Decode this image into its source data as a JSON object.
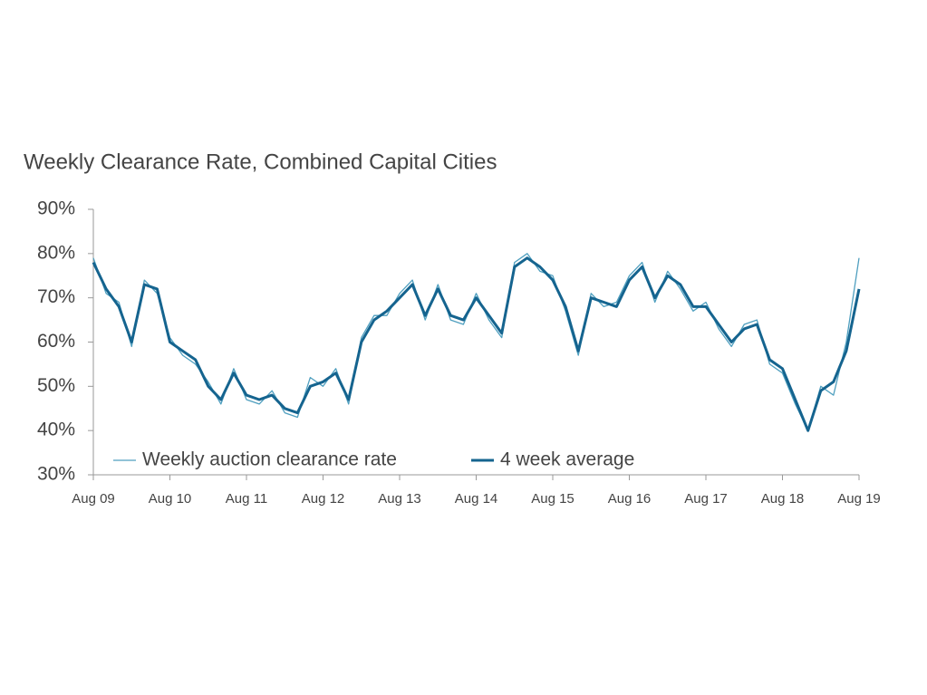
{
  "chart_data": {
    "type": "line",
    "title": "Weekly Clearance Rate, Combined Capital Cities",
    "x": [
      "2009-08",
      "2009-10",
      "2009-12",
      "2010-02",
      "2010-04",
      "2010-06",
      "2010-08",
      "2010-10",
      "2010-12",
      "2011-02",
      "2011-04",
      "2011-06",
      "2011-08",
      "2011-10",
      "2011-12",
      "2012-02",
      "2012-04",
      "2012-06",
      "2012-08",
      "2012-10",
      "2012-12",
      "2013-02",
      "2013-04",
      "2013-06",
      "2013-08",
      "2013-10",
      "2013-12",
      "2014-02",
      "2014-04",
      "2014-06",
      "2014-08",
      "2014-10",
      "2014-12",
      "2015-02",
      "2015-04",
      "2015-06",
      "2015-08",
      "2015-10",
      "2015-12",
      "2016-02",
      "2016-04",
      "2016-06",
      "2016-08",
      "2016-10",
      "2016-12",
      "2017-02",
      "2017-04",
      "2017-06",
      "2017-08",
      "2017-10",
      "2017-12",
      "2018-02",
      "2018-04",
      "2018-06",
      "2018-08",
      "2018-10",
      "2018-12",
      "2019-02",
      "2019-04",
      "2019-06",
      "2019-08"
    ],
    "series": [
      {
        "name": "Weekly auction clearance rate",
        "color": "#4f9fbf",
        "values": [
          79,
          71,
          69,
          59,
          74,
          71,
          61,
          57,
          55,
          51,
          46,
          54,
          47,
          46,
          49,
          44,
          43,
          52,
          50,
          54,
          46,
          61,
          66,
          66,
          71,
          74,
          65,
          73,
          65,
          64,
          71,
          65,
          61,
          78,
          80,
          76,
          75,
          67,
          57,
          71,
          68,
          69,
          75,
          78,
          69,
          76,
          72,
          67,
          69,
          63,
          59,
          64,
          65,
          55,
          53,
          46,
          40,
          50,
          48,
          60,
          79
        ]
      },
      {
        "name": "4 week average",
        "color": "#15648f",
        "values": [
          78,
          72,
          68,
          60,
          73,
          72,
          60,
          58,
          56,
          50,
          47,
          53,
          48,
          47,
          48,
          45,
          44,
          50,
          51,
          53,
          47,
          60,
          65,
          67,
          70,
          73,
          66,
          72,
          66,
          65,
          70,
          66,
          62,
          77,
          79,
          77,
          74,
          68,
          58,
          70,
          69,
          68,
          74,
          77,
          70,
          75,
          73,
          68,
          68,
          64,
          60,
          63,
          64,
          56,
          54,
          47,
          40,
          49,
          51,
          58,
          72
        ]
      }
    ],
    "xlim": [
      "2009-08",
      "2019-08"
    ],
    "xticks": [
      {
        "value": "2009-08",
        "label": "Aug 09"
      },
      {
        "value": "2010-08",
        "label": "Aug 10"
      },
      {
        "value": "2011-08",
        "label": "Aug 11"
      },
      {
        "value": "2012-08",
        "label": "Aug 12"
      },
      {
        "value": "2013-08",
        "label": "Aug 13"
      },
      {
        "value": "2014-08",
        "label": "Aug 14"
      },
      {
        "value": "2015-08",
        "label": "Aug 15"
      },
      {
        "value": "2016-08",
        "label": "Aug 16"
      },
      {
        "value": "2017-08",
        "label": "Aug 17"
      },
      {
        "value": "2018-08",
        "label": "Aug 18"
      },
      {
        "value": "2019-08",
        "label": "Aug 19"
      }
    ],
    "ylim": [
      30,
      90
    ],
    "yticks": [
      {
        "value": 30,
        "label": "30%"
      },
      {
        "value": 40,
        "label": "40%"
      },
      {
        "value": 50,
        "label": "50%"
      },
      {
        "value": 60,
        "label": "60%"
      },
      {
        "value": 70,
        "label": "70%"
      },
      {
        "value": 80,
        "label": "80%"
      },
      {
        "value": 90,
        "label": "90%"
      }
    ],
    "legend": "bottom-left"
  }
}
